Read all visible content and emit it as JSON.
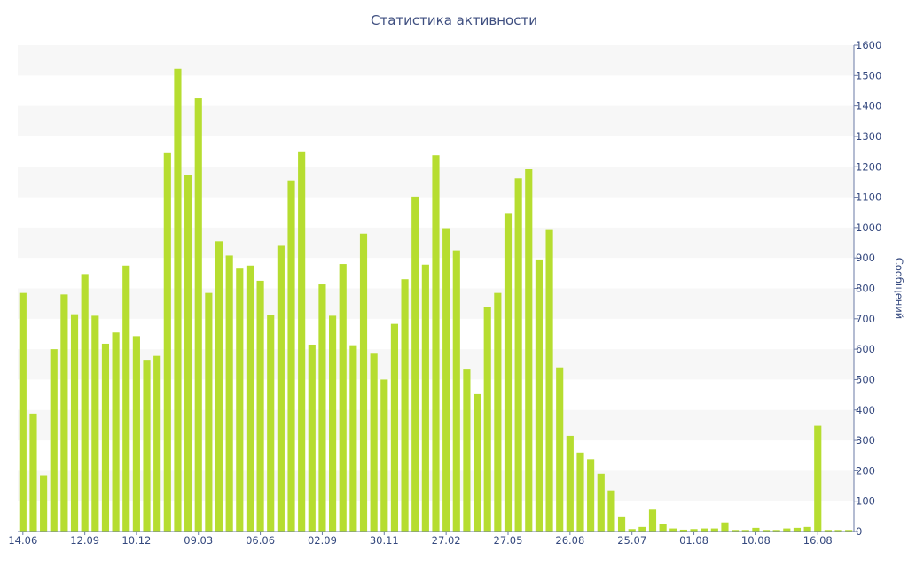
{
  "chart_data": {
    "type": "bar",
    "title": "Статистика активности",
    "ylabel": "Сообщений",
    "ylim": [
      0,
      1600
    ],
    "y_ticks": [
      0,
      100,
      200,
      300,
      400,
      500,
      600,
      700,
      800,
      900,
      1000,
      1100,
      1200,
      1300,
      1400,
      1500,
      1600
    ],
    "y_axis_side": "right",
    "grid": "alternating horizontal bands",
    "x_tick_labels": [
      "14.06",
      "12.09",
      "10.12",
      "09.03",
      "06.06",
      "02.09",
      "30.11",
      "27.02",
      "27.05",
      "26.08",
      "25.07",
      "01.08",
      "10.08",
      "16.08"
    ],
    "x_tick_positions": [
      0,
      6,
      11,
      17,
      23,
      29,
      35,
      41,
      47,
      53,
      59,
      65,
      71,
      77
    ],
    "values": [
      785,
      388,
      185,
      600,
      780,
      715,
      847,
      710,
      618,
      655,
      875,
      643,
      565,
      578,
      1245,
      1522,
      1172,
      1425,
      785,
      955,
      908,
      865,
      875,
      825,
      713,
      940,
      1155,
      1248,
      615,
      813,
      710,
      880,
      613,
      980,
      585,
      500,
      683,
      830,
      1102,
      878,
      1238,
      998,
      925,
      533,
      452,
      738,
      785,
      1048,
      1162,
      1192,
      895,
      992,
      540,
      315,
      260,
      238,
      190,
      135,
      50,
      8,
      15,
      72,
      25,
      10,
      6,
      8,
      10,
      10,
      30,
      5,
      5,
      12,
      5,
      5,
      10,
      12,
      15,
      348,
      5,
      5,
      5
    ],
    "bar_color": "#b6dd30",
    "band_color": "#f7f7f7",
    "axis_color": "#6a7aa5"
  }
}
